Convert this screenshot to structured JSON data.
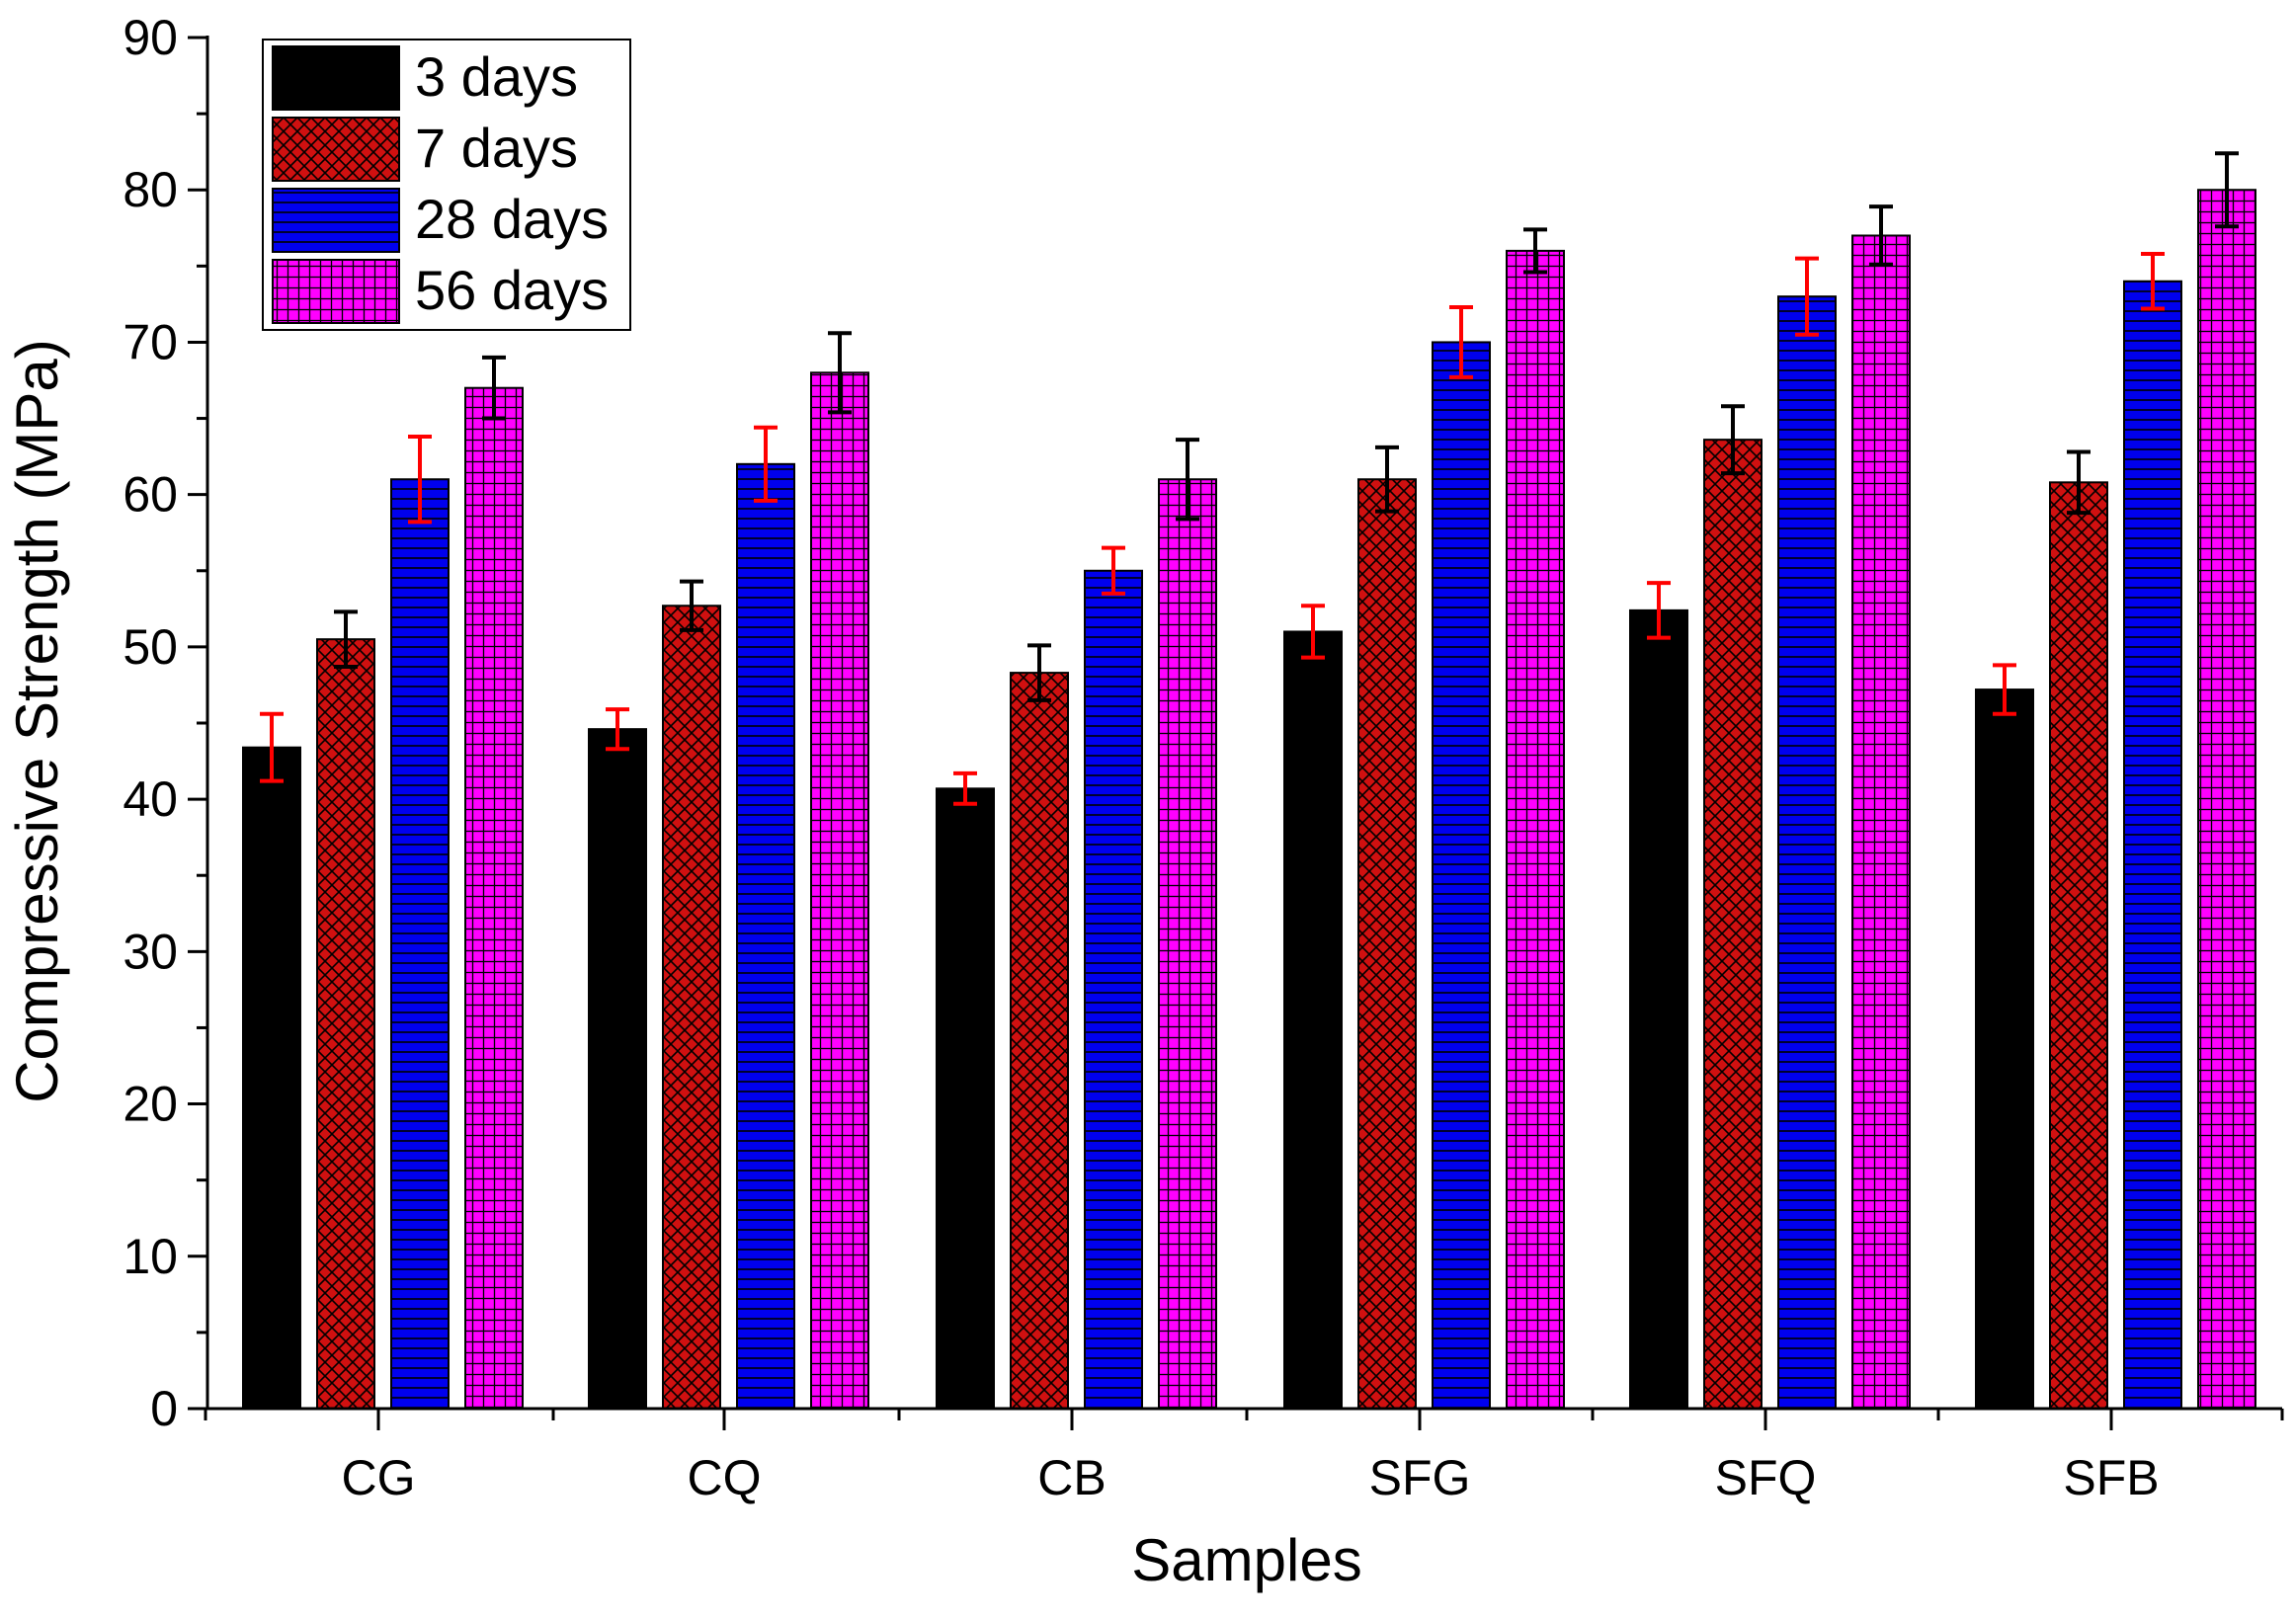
{
  "chart_data": {
    "type": "bar",
    "title": "",
    "xlabel": "Samples",
    "ylabel": "Compressive Strength (MPa)",
    "ylim": [
      0,
      90
    ],
    "yticks": [
      "0",
      "10",
      "20",
      "30",
      "40",
      "50",
      "60",
      "70",
      "80",
      "90"
    ],
    "categories": [
      "CG",
      "CQ",
      "CB",
      "SFG",
      "SFQ",
      "SFB"
    ],
    "grid": false,
    "legend_position": "top-left",
    "series": [
      {
        "name": "3 days",
        "color": "#000000",
        "pattern": "solid",
        "error_color": "#ff0000",
        "values": [
          43.4,
          44.6,
          40.7,
          51.0,
          52.4,
          47.2
        ],
        "errors": [
          2.2,
          1.3,
          1.0,
          1.7,
          1.8,
          1.6
        ]
      },
      {
        "name": "7 days",
        "color": "#d01010",
        "pattern": "crosshatch",
        "error_color": "#000000",
        "values": [
          50.5,
          52.7,
          48.3,
          61.0,
          63.6,
          60.8
        ],
        "errors": [
          1.8,
          1.6,
          1.8,
          2.1,
          2.2,
          2.0
        ]
      },
      {
        "name": "28 days",
        "color": "#0000ee",
        "pattern": "hlines",
        "error_color": "#ff0000",
        "values": [
          61.0,
          62.0,
          55.0,
          70.0,
          73.0,
          74.0
        ],
        "errors": [
          2.8,
          2.4,
          1.5,
          2.3,
          2.5,
          1.8
        ]
      },
      {
        "name": "56 days",
        "color": "#ff00ff",
        "pattern": "grid",
        "error_color": "#000000",
        "values": [
          67.0,
          68.0,
          61.0,
          76.0,
          77.0,
          80.0
        ],
        "errors": [
          2.0,
          2.6,
          2.6,
          1.4,
          1.9,
          2.4
        ]
      }
    ]
  }
}
